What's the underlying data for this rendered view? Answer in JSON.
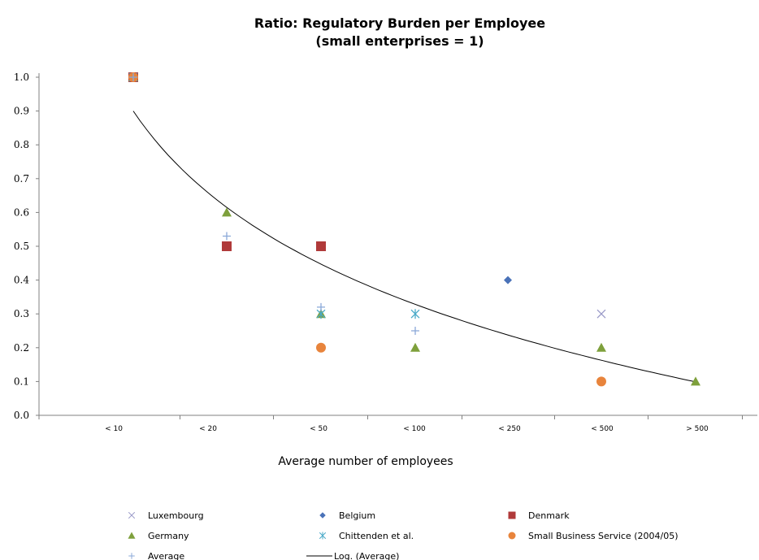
{
  "chart_data": {
    "type": "scatter",
    "title": "Ratio: Regulatory Burden per Employee",
    "subtitle": "(small enterprises = 1)",
    "xlabel": "Average number of employees",
    "ylabel": "",
    "categories": [
      "< 10",
      "< 20",
      "< 50",
      "< 100",
      "< 250",
      "< 500",
      "> 500"
    ],
    "ylim": [
      0,
      1
    ],
    "yticks": [
      "0.0",
      "0.1",
      "0.2",
      "0.3",
      "0.4",
      "0.5",
      "0.6",
      "0.7",
      "0.8",
      "0.9",
      "1.0"
    ],
    "grid": false,
    "legend_position": "bottom",
    "series": [
      {
        "name": "Luxembourg",
        "marker": "x",
        "color": "#9a9ac8",
        "values": [
          1.0,
          null,
          null,
          null,
          null,
          0.3,
          null
        ]
      },
      {
        "name": "Belgium",
        "marker": "diamond",
        "color": "#4a72b8",
        "values": [
          1.0,
          null,
          null,
          null,
          0.4,
          null,
          null
        ]
      },
      {
        "name": "Denmark",
        "marker": "square",
        "color": "#b03a3a",
        "values": [
          1.0,
          0.5,
          0.5,
          null,
          null,
          null,
          null
        ]
      },
      {
        "name": "Germany",
        "marker": "triangle",
        "color": "#7ea03c",
        "values": [
          1.0,
          0.6,
          0.3,
          0.2,
          null,
          0.2,
          0.1
        ]
      },
      {
        "name": "Chittenden et al.",
        "marker": "asterisk",
        "color": "#4aaac8",
        "values": [
          1.0,
          null,
          0.3,
          0.3,
          null,
          null,
          null
        ]
      },
      {
        "name": "Small Business Service (2004/05)",
        "marker": "circle",
        "color": "#e8843c",
        "values": [
          1.0,
          null,
          0.2,
          null,
          null,
          0.1,
          null
        ]
      },
      {
        "name": "Average",
        "marker": "plus",
        "color": "#8aa8d8",
        "values": [
          1.0,
          0.53,
          0.32,
          0.25,
          null,
          null,
          null
        ]
      }
    ],
    "trendline": {
      "name": "Log. (Average)",
      "type": "logarithmic",
      "color": "#000000",
      "x_index_range": [
        0,
        6
      ],
      "y_start": 0.9,
      "y_end": 0.1
    }
  }
}
